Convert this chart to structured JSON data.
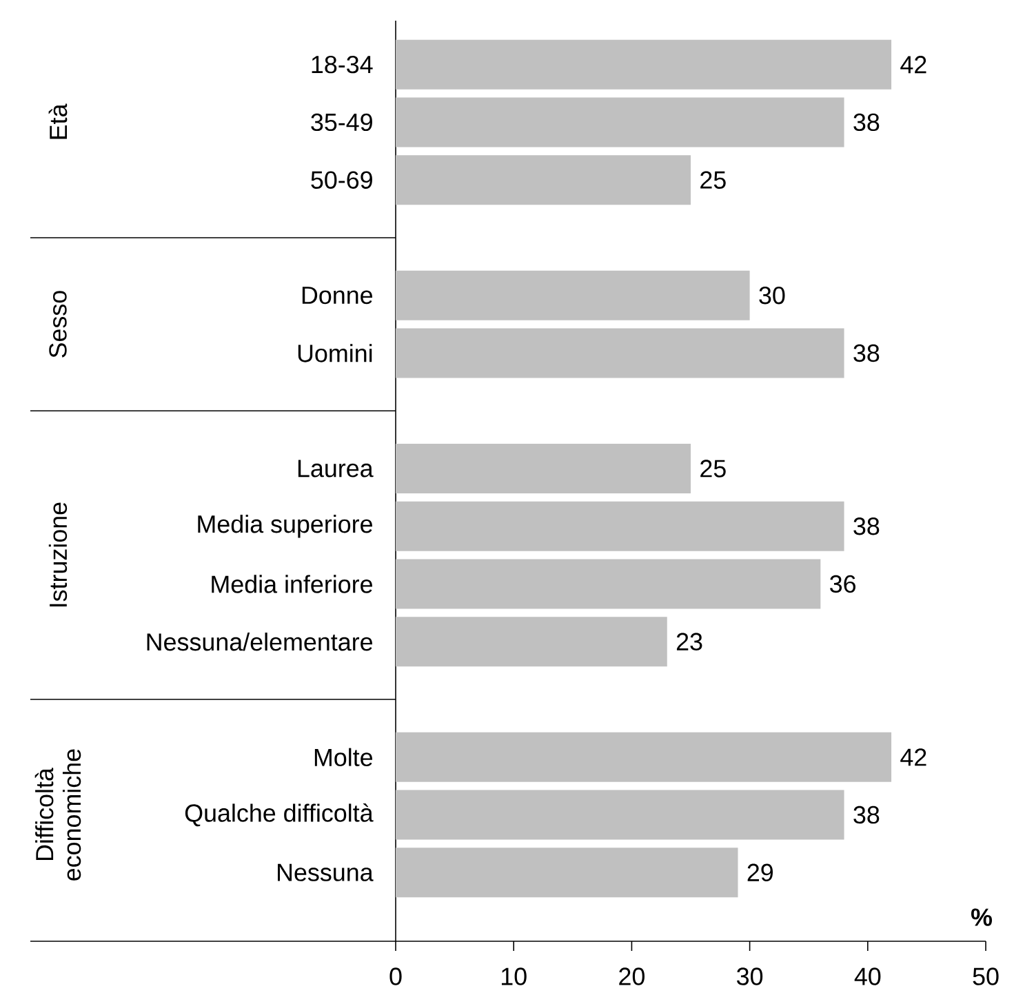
{
  "chart_data": {
    "type": "bar",
    "orientation": "horizontal",
    "xlabel": "%",
    "categories": [
      "18-34",
      "35-49",
      "50-69",
      null,
      "Donne",
      "Uomini",
      null,
      "Laurea",
      "Media superiore",
      "Media inferiore",
      "Nessuna/elementare",
      null,
      "Molte",
      "Qualche difficoltà",
      "Nessuna"
    ],
    "values": [
      42,
      38,
      25,
      null,
      30,
      38,
      null,
      25,
      38,
      36,
      23,
      null,
      42,
      38,
      29
    ],
    "color": "#c0c0c0",
    "xlim": [
      0,
      50
    ],
    "xticks": [
      0,
      10,
      20,
      30,
      40,
      50
    ],
    "data_labels": true,
    "annotations": [
      "Età",
      "Sesso",
      "Istruzione",
      "Difficoltà economiche"
    ]
  }
}
